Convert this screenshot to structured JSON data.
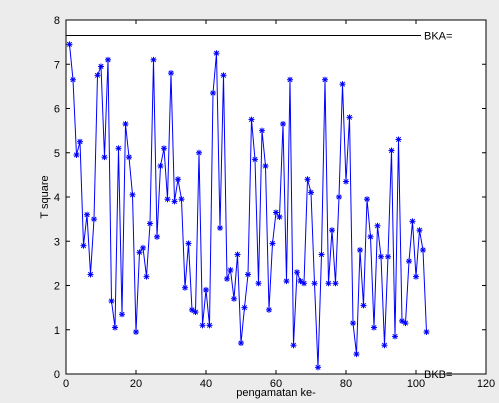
{
  "chart_data": {
    "type": "line",
    "xlabel": "pengamatan ke-",
    "ylabel": "T square",
    "xlim": [
      0,
      120
    ],
    "ylim": [
      0,
      8
    ],
    "xticks": [
      0,
      20,
      40,
      60,
      80,
      100,
      120
    ],
    "yticks": [
      0,
      1,
      2,
      3,
      4,
      5,
      6,
      7,
      8
    ],
    "grid": false,
    "series": [
      {
        "color": "#0000ff",
        "marker": "asterisk",
        "x": [
          1,
          2,
          3,
          4,
          5,
          6,
          7,
          8,
          9,
          10,
          11,
          12,
          13,
          14,
          15,
          16,
          17,
          18,
          19,
          20,
          21,
          22,
          23,
          24,
          25,
          26,
          27,
          28,
          29,
          30,
          31,
          32,
          33,
          34,
          35,
          36,
          37,
          38,
          39,
          40,
          41,
          42,
          43,
          44,
          45,
          46,
          47,
          48,
          49,
          50,
          51,
          52,
          53,
          54,
          55,
          56,
          57,
          58,
          59,
          60,
          61,
          62,
          63,
          64,
          65,
          66,
          67,
          68,
          69,
          70,
          71,
          72,
          73,
          74,
          75,
          76,
          77,
          78,
          79,
          80,
          81,
          82,
          83,
          84,
          85,
          86,
          87,
          88,
          89,
          90,
          91,
          92,
          93,
          94,
          95,
          96,
          97,
          98,
          99,
          100,
          101,
          102,
          103
        ],
        "y": [
          7.45,
          6.65,
          4.95,
          5.25,
          2.9,
          3.6,
          2.25,
          3.5,
          6.75,
          6.95,
          4.9,
          7.1,
          1.65,
          1.05,
          5.1,
          1.35,
          5.65,
          4.9,
          4.05,
          0.95,
          2.75,
          2.85,
          2.2,
          3.4,
          7.1,
          3.1,
          4.7,
          5.1,
          3.95,
          6.8,
          3.9,
          4.4,
          3.95,
          1.95,
          2.95,
          1.45,
          1.4,
          5.0,
          1.1,
          1.9,
          1.1,
          6.35,
          7.25,
          3.3,
          6.75,
          2.15,
          2.35,
          1.7,
          2.7,
          0.7,
          1.5,
          2.25,
          5.75,
          4.85,
          2.05,
          5.5,
          4.7,
          1.45,
          2.95,
          3.65,
          3.55,
          5.65,
          2.1,
          6.65,
          0.65,
          2.3,
          2.1,
          2.05,
          4.4,
          4.1,
          2.05,
          0.15,
          2.7,
          6.65,
          2.05,
          3.25,
          2.05,
          4.0,
          6.55,
          4.35,
          5.8,
          1.15,
          0.45,
          2.8,
          1.55,
          3.95,
          3.1,
          1.05,
          3.35,
          2.65,
          0.65,
          2.65,
          5.05,
          0.85,
          5.3,
          1.2,
          1.15,
          2.55,
          3.45,
          2.2,
          3.25,
          2.8,
          0.95
        ]
      }
    ],
    "reference_lines": [
      {
        "label": "BKA=",
        "y": 7.65,
        "color": "#000000"
      },
      {
        "label": "BKB=",
        "y": 0.0,
        "color": "#000000"
      }
    ]
  }
}
